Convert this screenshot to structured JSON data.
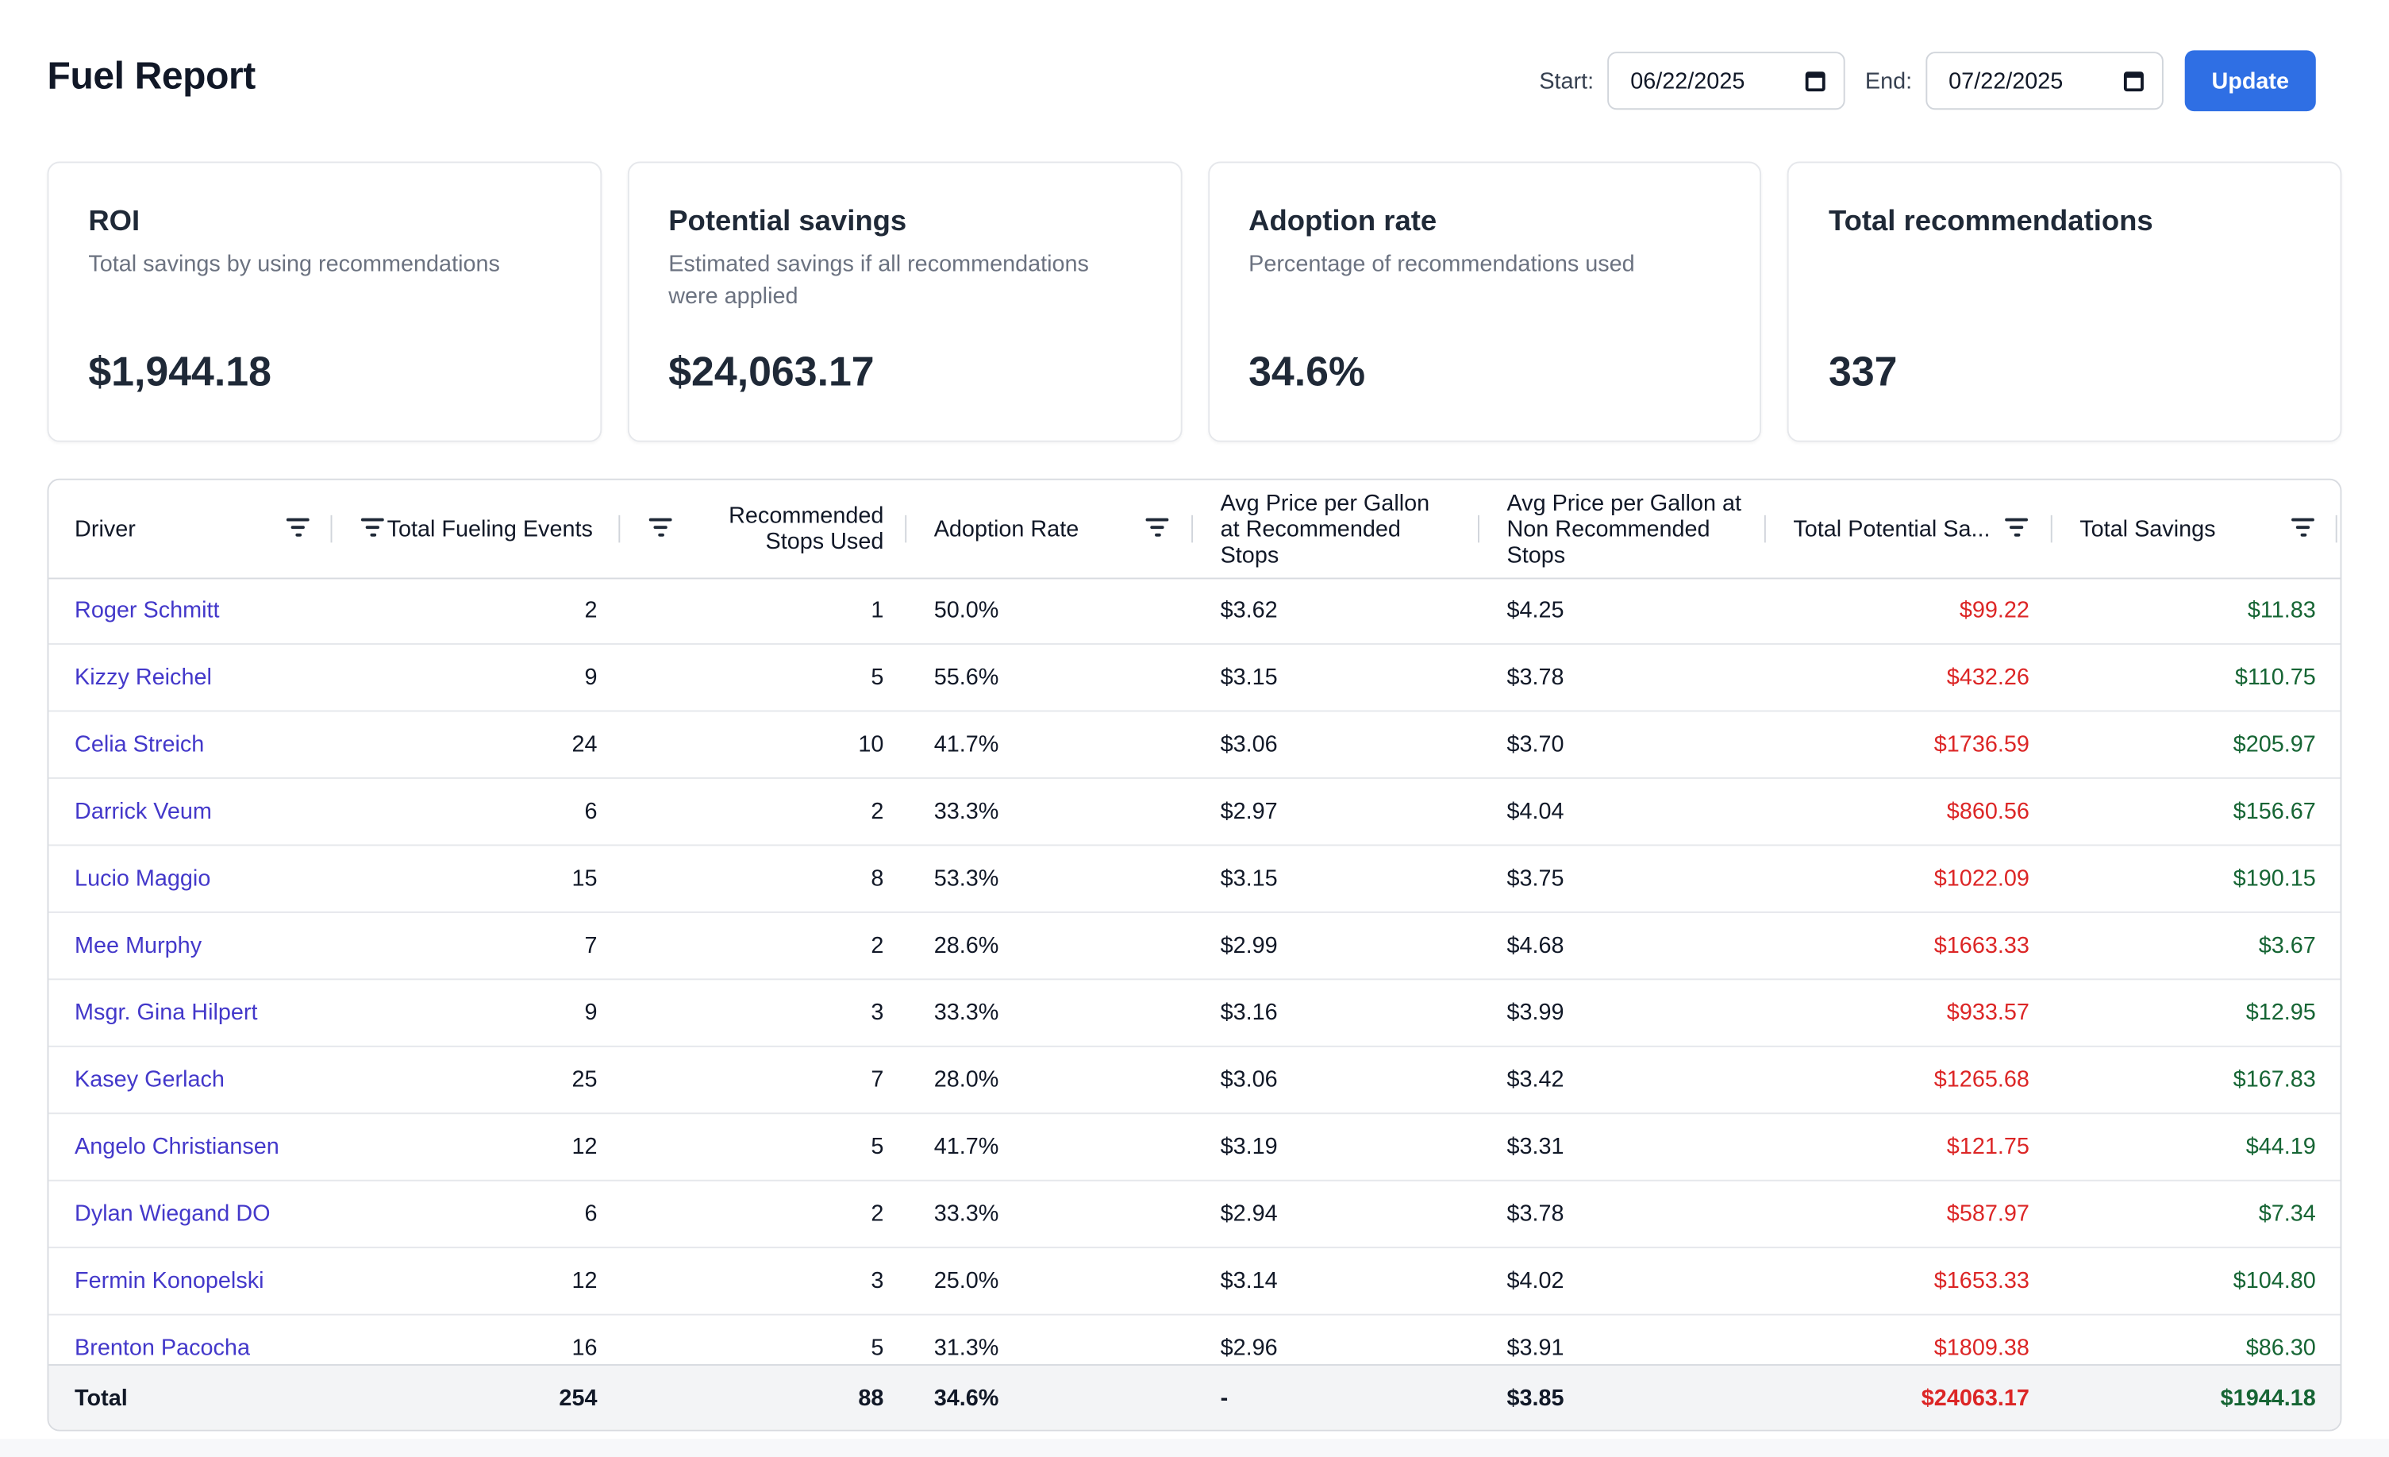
{
  "page": {
    "title": "Fuel Report"
  },
  "daterange": {
    "start_label": "Start:",
    "start_value": "06/22/2025",
    "end_label": "End:",
    "end_value": "07/22/2025",
    "update_label": "Update"
  },
  "cards": [
    {
      "title": "ROI",
      "desc": "Total savings by using recommendations",
      "value": "$1,944.18"
    },
    {
      "title": "Potential savings",
      "desc": "Estimated savings if all recommendations were applied",
      "value": "$24,063.17"
    },
    {
      "title": "Adoption rate",
      "desc": "Percentage of recommendations used",
      "value": "34.6%"
    },
    {
      "title": "Total recommendations",
      "desc": "",
      "value": "337"
    }
  ],
  "table": {
    "columns": {
      "driver": "Driver",
      "total_fueling_events": "Total Fueling Events",
      "recommended_stops_used": "Recommended Stops Used",
      "adoption_rate": "Adoption Rate",
      "avg_price_recommended": "Avg Price per Gallon at Recommended Stops",
      "avg_price_non_recommended": "Avg Price per Gallon at Non Recommended Stops",
      "total_potential_savings": "Total Potential Sa...",
      "total_savings": "Total Savings"
    },
    "rows": [
      {
        "driver": "Roger Schmitt",
        "events": "2",
        "used": "1",
        "rate": "50.0%",
        "rec_price": "$3.62",
        "non_price": "$4.25",
        "potential": "$99.22",
        "savings": "$11.83"
      },
      {
        "driver": "Kizzy Reichel",
        "events": "9",
        "used": "5",
        "rate": "55.6%",
        "rec_price": "$3.15",
        "non_price": "$3.78",
        "potential": "$432.26",
        "savings": "$110.75"
      },
      {
        "driver": "Celia Streich",
        "events": "24",
        "used": "10",
        "rate": "41.7%",
        "rec_price": "$3.06",
        "non_price": "$3.70",
        "potential": "$1736.59",
        "savings": "$205.97"
      },
      {
        "driver": "Darrick Veum",
        "events": "6",
        "used": "2",
        "rate": "33.3%",
        "rec_price": "$2.97",
        "non_price": "$4.04",
        "potential": "$860.56",
        "savings": "$156.67"
      },
      {
        "driver": "Lucio Maggio",
        "events": "15",
        "used": "8",
        "rate": "53.3%",
        "rec_price": "$3.15",
        "non_price": "$3.75",
        "potential": "$1022.09",
        "savings": "$190.15"
      },
      {
        "driver": "Mee Murphy",
        "events": "7",
        "used": "2",
        "rate": "28.6%",
        "rec_price": "$2.99",
        "non_price": "$4.68",
        "potential": "$1663.33",
        "savings": "$3.67"
      },
      {
        "driver": "Msgr. Gina Hilpert",
        "events": "9",
        "used": "3",
        "rate": "33.3%",
        "rec_price": "$3.16",
        "non_price": "$3.99",
        "potential": "$933.57",
        "savings": "$12.95"
      },
      {
        "driver": "Kasey Gerlach",
        "events": "25",
        "used": "7",
        "rate": "28.0%",
        "rec_price": "$3.06",
        "non_price": "$3.42",
        "potential": "$1265.68",
        "savings": "$167.83"
      },
      {
        "driver": "Angelo Christiansen",
        "events": "12",
        "used": "5",
        "rate": "41.7%",
        "rec_price": "$3.19",
        "non_price": "$3.31",
        "potential": "$121.75",
        "savings": "$44.19"
      },
      {
        "driver": "Dylan Wiegand DO",
        "events": "6",
        "used": "2",
        "rate": "33.3%",
        "rec_price": "$2.94",
        "non_price": "$3.78",
        "potential": "$587.97",
        "savings": "$7.34"
      },
      {
        "driver": "Fermin Konopelski",
        "events": "12",
        "used": "3",
        "rate": "25.0%",
        "rec_price": "$3.14",
        "non_price": "$4.02",
        "potential": "$1653.33",
        "savings": "$104.80"
      },
      {
        "driver": "Brenton Pacocha",
        "events": "16",
        "used": "5",
        "rate": "31.3%",
        "rec_price": "$2.96",
        "non_price": "$3.91",
        "potential": "$1809.38",
        "savings": "$86.30"
      }
    ],
    "total": {
      "label": "Total",
      "events": "254",
      "used": "88",
      "rate": "34.6%",
      "rec_price": "-",
      "non_price": "$3.85",
      "potential": "$24063.17",
      "savings": "$1944.18"
    }
  },
  "colors": {
    "accent": "#2f6fe4",
    "link": "#4338ca",
    "negative": "#dc2626",
    "positive": "#166534"
  }
}
